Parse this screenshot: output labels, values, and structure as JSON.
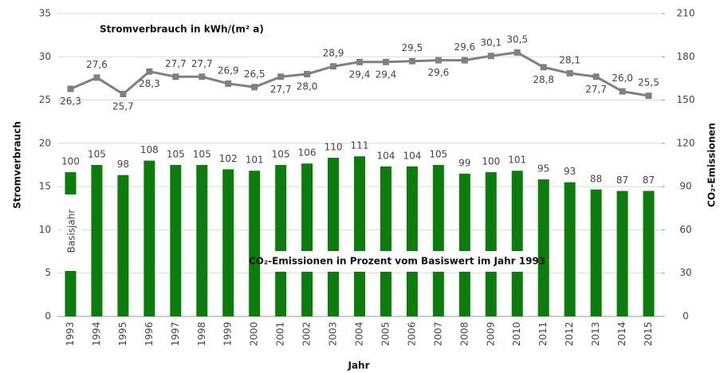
{
  "chart_data": {
    "type": "bar-line",
    "title": "Stromverbrauch in kWh/(m² a)",
    "annotations": [
      "CO₂-Emissionen in Prozent vom Basiswert im Jahr 1993",
      "Basisjahr"
    ],
    "x_label": "Jahr",
    "y_label": "Stromverbrauch",
    "y2_label": "CO₂-Emissionen",
    "categories": [
      "1993",
      "1994",
      "1995",
      "1996",
      "1997",
      "1998",
      "1999",
      "2000",
      "2001",
      "2002",
      "2003",
      "2004",
      "2005",
      "2006",
      "2007",
      "2008",
      "2009",
      "2010",
      "2011",
      "2012",
      "2013",
      "2014",
      "2015"
    ],
    "series": [
      {
        "name": "Stromverbrauch",
        "type": "line",
        "color": "#808080",
        "values": [
          26.3,
          27.6,
          25.7,
          28.3,
          27.7,
          27.7,
          26.9,
          26.5,
          27.7,
          28.0,
          28.9,
          29.4,
          29.4,
          29.5,
          29.6,
          29.6,
          30.1,
          30.5,
          28.8,
          28.1,
          27.7,
          26.0,
          25.5
        ],
        "value_labels": [
          "26,3",
          "27,6",
          "25,7",
          "28,3",
          "27,7",
          "27,7",
          "26,9",
          "26,5",
          "27,7",
          "28,0",
          "28,9",
          "29,4",
          "29,4",
          "29,5",
          "29,6",
          "29,6",
          "30,1",
          "30,5",
          "28,8",
          "28,1",
          "27,7",
          "26,0",
          "25,5"
        ]
      },
      {
        "name": "CO₂-Emissionen",
        "type": "bar",
        "axis": "y2",
        "color": "#0a7d0a",
        "values": [
          100,
          105,
          98,
          108,
          105,
          105,
          102,
          101,
          105,
          106,
          110,
          111,
          104,
          104,
          105,
          99,
          100,
          101,
          95,
          93,
          88,
          87,
          87
        ]
      }
    ],
    "ylim": [
      0,
      35
    ],
    "yticks": [
      0,
      5,
      10,
      15,
      20,
      25,
      30,
      35
    ],
    "y2lim": [
      0,
      210
    ],
    "y2ticks": [
      0,
      30,
      60,
      90,
      120,
      150,
      180,
      210
    ],
    "grid": true
  }
}
